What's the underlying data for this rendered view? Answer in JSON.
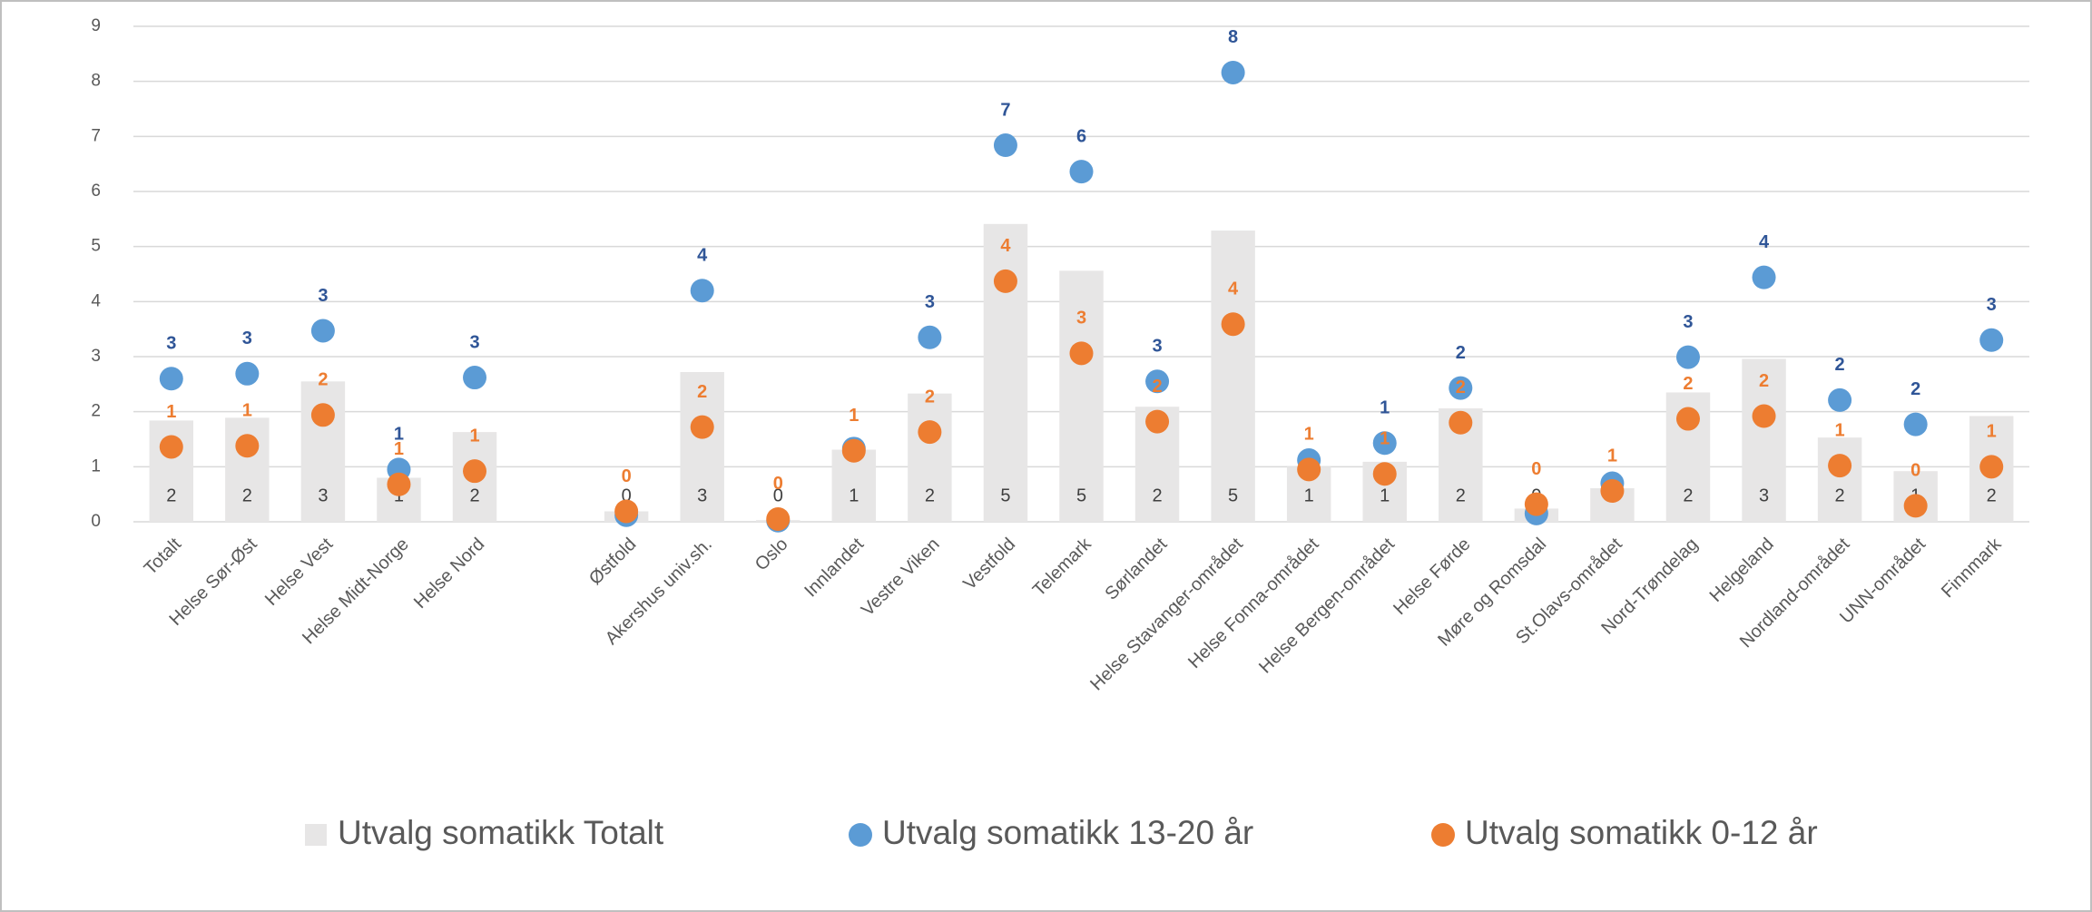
{
  "chart_data": {
    "type": "bar",
    "categories": [
      "Totalt",
      "Helse Sør-Øst",
      "Helse Vest",
      "Helse Midt-Norge",
      "Helse Nord",
      null,
      "Østfold",
      "Akershus univ.sh.",
      "Oslo",
      "Innlandet",
      "Vestre Viken",
      "Vestfold",
      "Telemark",
      "Sørlandet",
      "Helse Stavanger-området",
      "Helse Fonna-området",
      "Helse Bergen-området",
      "Helse Førde",
      "Møre og Romsdal",
      "St.Olavs-området",
      "Nord-Trøndelag",
      "Helgeland",
      "Nordland-området",
      "UNN-området",
      "Finnmark"
    ],
    "series": [
      {
        "name": "Utvalg somatikk Totalt",
        "type": "bar",
        "color": "#e7e6e6",
        "label_color": "#404040",
        "values": [
          1.84,
          1.89,
          2.55,
          0.8,
          1.63,
          null,
          0.19,
          2.72,
          0.03,
          1.31,
          2.33,
          5.41,
          4.56,
          2.09,
          5.29,
          1.0,
          1.09,
          2.06,
          0.24,
          0.61,
          2.35,
          2.96,
          1.53,
          0.92,
          1.92
        ],
        "value_labels": [
          "2",
          "2",
          "3",
          "1",
          "2",
          null,
          "0",
          "3",
          "0",
          "1",
          "2",
          "5",
          "5",
          "2",
          "5",
          "1",
          "1",
          "2",
          "0",
          "1",
          "2",
          "3",
          "2",
          "1",
          "2"
        ]
      },
      {
        "name": "Utvalg somatikk 13-20 år",
        "type": "scatter",
        "color": "#5b9bd5",
        "label_color": "#2f5597",
        "values": [
          2.6,
          2.69,
          3.47,
          0.95,
          2.62,
          null,
          0.12,
          4.2,
          0.02,
          1.33,
          3.35,
          6.84,
          6.36,
          2.55,
          8.16,
          1.12,
          1.43,
          2.43,
          0.15,
          0.7,
          2.99,
          4.44,
          2.21,
          1.77,
          3.3
        ],
        "value_labels": [
          "3",
          "3",
          "3",
          "1",
          "3",
          null,
          null,
          "4",
          null,
          null,
          "3",
          "7",
          "6",
          "3",
          "8",
          null,
          "1",
          "2",
          null,
          null,
          "3",
          "4",
          "2",
          "2",
          "3"
        ]
      },
      {
        "name": "Utvalg somatikk 0-12 år",
        "type": "scatter",
        "color": "#ed7d31",
        "label_color": "#ed7d31",
        "values": [
          1.36,
          1.38,
          1.94,
          0.68,
          0.92,
          null,
          0.19,
          1.72,
          0.05,
          1.29,
          1.63,
          4.37,
          3.06,
          1.82,
          3.59,
          0.95,
          0.87,
          1.8,
          0.32,
          0.56,
          1.87,
          1.92,
          1.02,
          0.29,
          1.0
        ],
        "value_labels": [
          "1",
          "1",
          "2",
          "1",
          "1",
          null,
          "0",
          "2",
          "0",
          "1",
          "2",
          "4",
          "3",
          "2",
          "4",
          "1",
          "1",
          "2",
          "0",
          "1",
          "2",
          "2",
          "1",
          "0",
          "1"
        ]
      }
    ],
    "ylim": [
      0,
      9
    ],
    "yticks": [
      0,
      1,
      2,
      3,
      4,
      5,
      6,
      7,
      8,
      9
    ],
    "grid": true,
    "legend": "bottom"
  }
}
